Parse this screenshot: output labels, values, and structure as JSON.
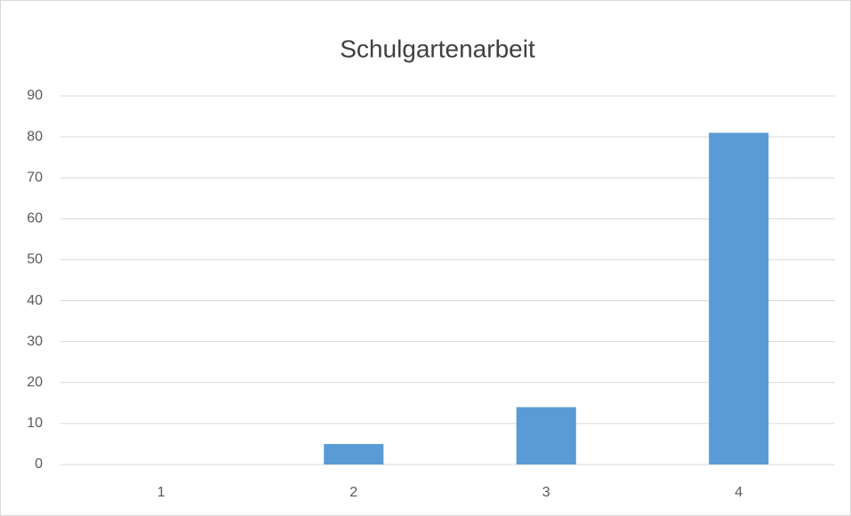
{
  "chart_data": {
    "type": "bar",
    "title": "Schulgartenarbeit",
    "categories": [
      "1",
      "2",
      "3",
      "4"
    ],
    "values": [
      0,
      5,
      14,
      81
    ],
    "color": "#5b9bd5",
    "ylim": [
      0,
      90
    ],
    "yticks": [
      0,
      10,
      20,
      30,
      40,
      50,
      60,
      70,
      80,
      90
    ],
    "grid": true
  }
}
